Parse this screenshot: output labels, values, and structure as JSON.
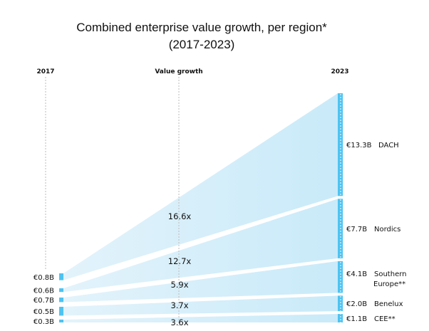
{
  "chart_data": {
    "type": "sankey",
    "title": "Combined enterprise value growth, per region*",
    "subtitle": "(2017-2023)",
    "axis_labels": {
      "start": "2017",
      "middle": "Value growth",
      "end": "2023"
    },
    "series": [
      {
        "region": "DACH",
        "value_2017": "€0.8B",
        "value_2023": "€13.3B",
        "growth": "16.6x",
        "v2017": 0.8,
        "v2023": 13.3
      },
      {
        "region": "Nordics",
        "value_2017": "€0.6B",
        "value_2023": "€7.7B",
        "growth": "12.7x",
        "v2017": 0.6,
        "v2023": 7.7
      },
      {
        "region": "Southern Europe**",
        "value_2017": "€0.7B",
        "value_2023": "€4.1B",
        "growth": "5.9x",
        "v2017": 0.7,
        "v2023": 4.1
      },
      {
        "region": "Benelux",
        "value_2017": "€0.5B",
        "value_2023": "€2.0B",
        "growth": "3.7x",
        "v2017": 0.5,
        "v2023": 2.0
      },
      {
        "region": "CEE**",
        "value_2017": "€0.3B",
        "value_2023": "€1.1B",
        "growth": "3.6x",
        "v2017": 0.3,
        "v2023": 1.1
      }
    ],
    "colors": {
      "bar": "#4ec3f1",
      "flow_light": "#e3f3fb",
      "flow_dark": "#c9eaf9"
    }
  }
}
